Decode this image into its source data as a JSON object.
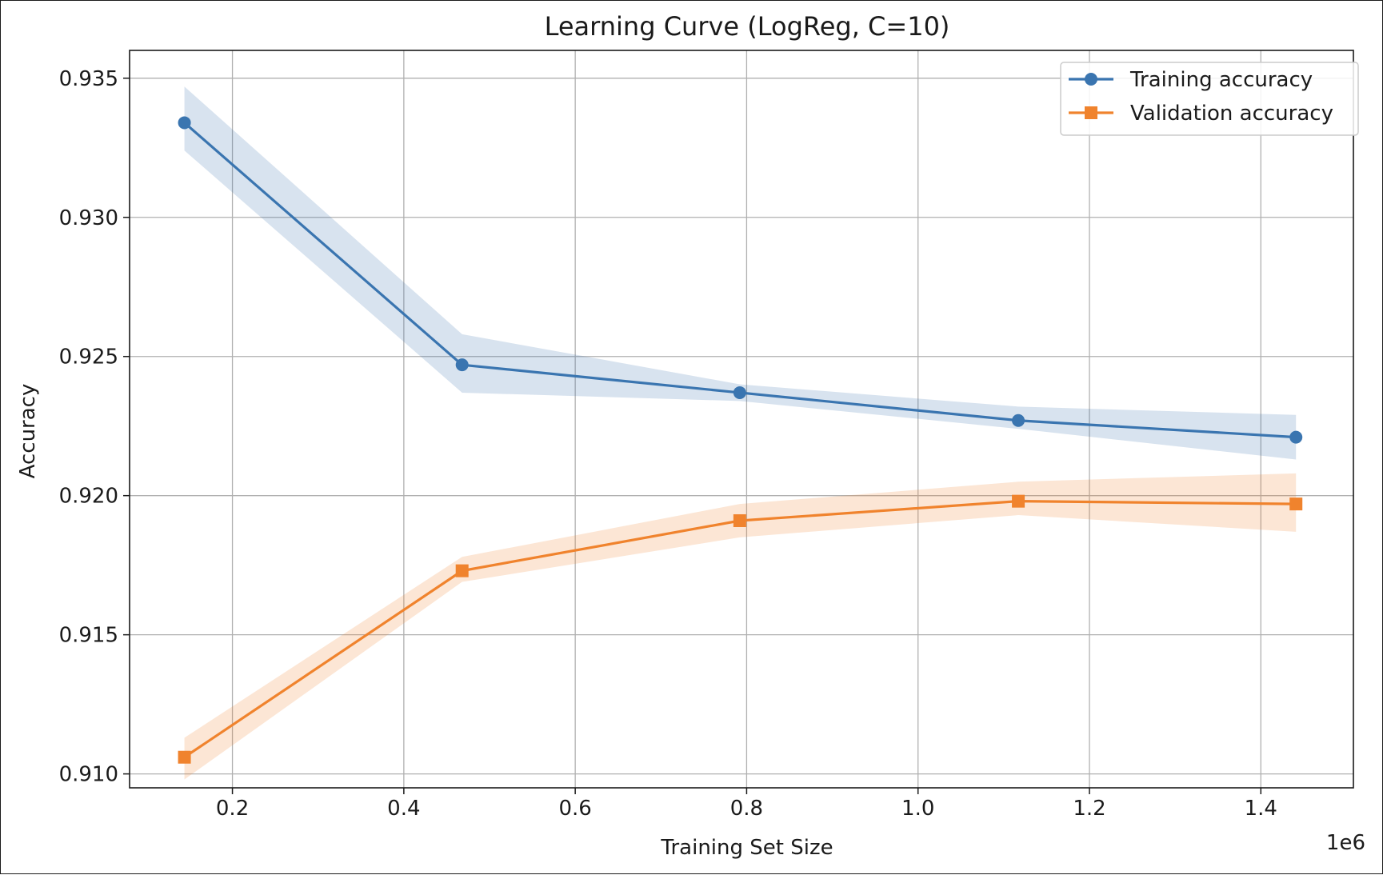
{
  "chart_data": {
    "type": "line",
    "title": "Learning Curve (LogReg, C=10)",
    "xlabel": "Training Set Size",
    "ylabel": "Accuracy",
    "x_offset_label": "1e6",
    "xlim": [
      0.08,
      1.508
    ],
    "ylim": [
      0.9095,
      0.936
    ],
    "xticks": [
      0.2,
      0.4,
      0.6,
      0.8,
      1.0,
      1.2,
      1.4
    ],
    "xtick_labels": [
      "0.2",
      "0.4",
      "0.6",
      "0.8",
      "1.0",
      "1.2",
      "1.4"
    ],
    "yticks": [
      0.91,
      0.915,
      0.92,
      0.925,
      0.93,
      0.935
    ],
    "ytick_labels": [
      "0.910",
      "0.915",
      "0.920",
      "0.925",
      "0.930",
      "0.935"
    ],
    "grid": true,
    "legend_position": "top-right",
    "x": [
      0.144,
      0.468,
      0.792,
      1.117,
      1.441
    ],
    "series": [
      {
        "name": "Training accuracy",
        "marker": "circle",
        "color": "#3a75b0",
        "values": [
          0.9334,
          0.9247,
          0.9237,
          0.9227,
          0.9221
        ],
        "upper": [
          0.9347,
          0.9258,
          0.924,
          0.9232,
          0.9229
        ],
        "lower": [
          0.9324,
          0.9237,
          0.9234,
          0.9224,
          0.9213
        ]
      },
      {
        "name": "Validation accuracy",
        "marker": "square",
        "color": "#f0832d",
        "values": [
          0.9106,
          0.9173,
          0.9191,
          0.9198,
          0.9197
        ],
        "upper": [
          0.9113,
          0.9178,
          0.9197,
          0.9205,
          0.9208
        ],
        "lower": [
          0.9098,
          0.9169,
          0.9185,
          0.9193,
          0.9187
        ]
      }
    ]
  }
}
